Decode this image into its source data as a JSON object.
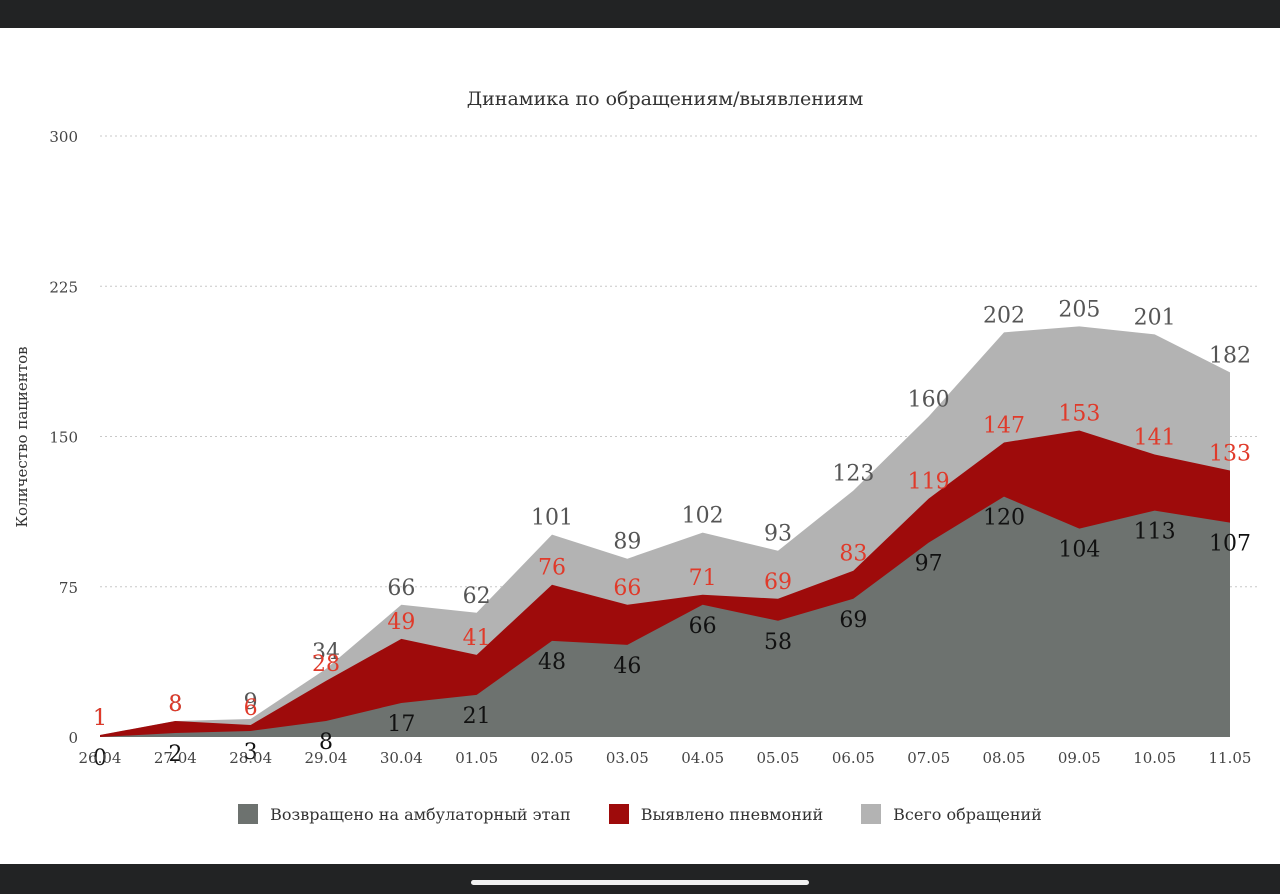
{
  "chart_data": {
    "type": "area",
    "title": "Динамика по обращениям/выявлениям",
    "ylabel": "Количество пациентов",
    "xlabel": "",
    "ylim": [
      0,
      300
    ],
    "yticks": [
      "0",
      "75",
      "150",
      "225",
      "300"
    ],
    "grid": true,
    "legend_position": "bottom",
    "categories": [
      "26.04",
      "27.04",
      "28.04",
      "29.04",
      "30.04",
      "01.05",
      "02.05",
      "03.05",
      "04.05",
      "05.05",
      "06.05",
      "07.05",
      "08.05",
      "09.05",
      "10.05",
      "11.05"
    ],
    "series": [
      {
        "name": "Всего обращений",
        "color": "#b3b3b3",
        "label_color": "#555555",
        "values": [
          1,
          8,
          9,
          34,
          66,
          62,
          101,
          89,
          102,
          93,
          123,
          160,
          202,
          205,
          201,
          182
        ]
      },
      {
        "name": "Выявлено пневмоний",
        "color": "#9e0b0b",
        "label_color": "#e03a2a",
        "values": [
          1,
          8,
          6,
          28,
          49,
          41,
          76,
          66,
          71,
          69,
          83,
          119,
          147,
          153,
          141,
          133
        ]
      },
      {
        "name": "Возвращено на амбулаторный этап",
        "color": "#6d726f",
        "label_color": "#111111",
        "values": [
          0,
          2,
          3,
          8,
          17,
          21,
          48,
          46,
          66,
          58,
          69,
          97,
          120,
          104,
          113,
          107
        ]
      }
    ],
    "legend": [
      {
        "name": "Возвращено на амбулаторный этап",
        "color": "#6d726f"
      },
      {
        "name": "Выявлено пневмоний",
        "color": "#9e0b0b"
      },
      {
        "name": "Всего обращений",
        "color": "#b3b3b3"
      }
    ]
  }
}
